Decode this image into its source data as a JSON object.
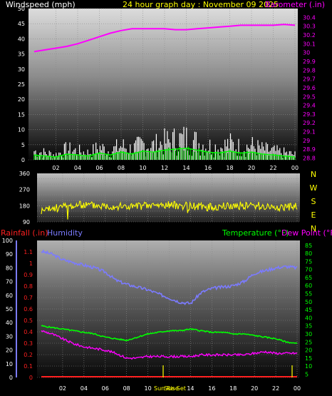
{
  "colors": {
    "wind": "#ffffff",
    "wind_avg": "#00b000",
    "wind_avg_line": "#00ff00",
    "barometer": "#ff00ff",
    "direction": "#ffff00",
    "rain": "#ff2020",
    "humidity": "#7b7bff",
    "temperature": "#00ff00",
    "dewpoint": "#ff00ff",
    "axis_left": "#ffffff",
    "grid": "#8a8a8a"
  },
  "header": {
    "wind_label": "Windspeed (mph)",
    "graph_title": "24 hour graph day : November 09 2025",
    "baro_label": "Barometer (.in)"
  },
  "lower_header": {
    "rain_label": "Rainfall (.in)",
    "humidity_label": "Humidity",
    "temp_label": "Temperature (°F)",
    "dew_label": "Dew Point (°F)"
  },
  "sun": {
    "rise_label": "Sun Rise",
    "set_label": "Sun Set"
  },
  "chart_data": [
    {
      "type": "area",
      "title": "24 hour graph day : November 09 2025",
      "x_ticks": [
        "02",
        "04",
        "06",
        "08",
        "10",
        "12",
        "14",
        "16",
        "18",
        "20",
        "22",
        "00"
      ],
      "ylabel": "Windspeed (mph)",
      "ylim": [
        0,
        50
      ],
      "y_ticks": [
        0,
        5,
        10,
        15,
        20,
        25,
        30,
        35,
        40,
        45,
        50
      ],
      "y2label": "Barometer (.in)",
      "y2lim": [
        28.78,
        30.5
      ],
      "y2_ticks": [
        "28.8",
        "28.9",
        "29",
        "29.1",
        "29.2",
        "29.3",
        "29.4",
        "29.5",
        "29.6",
        "29.7",
        "29.8",
        "29.9",
        "30",
        "30.1",
        "30.2",
        "30.3",
        "30.4"
      ],
      "series": [
        {
          "name": "Windspeed (mph)",
          "x": [
            0,
            1,
            2,
            3,
            4,
            5,
            6,
            7,
            8,
            9,
            10,
            11,
            12,
            13,
            14,
            15,
            16,
            17,
            18,
            19,
            20,
            21,
            22,
            23,
            24
          ],
          "values": [
            5,
            4,
            3,
            6,
            5,
            4,
            7,
            5,
            8,
            6,
            9,
            8,
            10,
            11,
            12,
            10,
            8,
            7,
            9,
            7,
            8,
            6,
            5,
            4,
            3
          ]
        },
        {
          "name": "Barometer (.in)",
          "x": [
            0,
            1,
            2,
            3,
            4,
            5,
            6,
            7,
            8,
            9,
            10,
            11,
            12,
            13,
            14,
            15,
            16,
            17,
            18,
            19,
            20,
            21,
            22,
            23,
            24
          ],
          "values": [
            30.01,
            30.03,
            30.05,
            30.07,
            30.1,
            30.14,
            30.18,
            30.22,
            30.25,
            30.27,
            30.27,
            30.27,
            30.27,
            30.26,
            30.26,
            30.27,
            30.28,
            30.29,
            30.3,
            30.31,
            30.31,
            30.31,
            30.31,
            30.32,
            30.31
          ]
        }
      ]
    },
    {
      "type": "line",
      "x_ticks": [],
      "y_ticks": [
        90,
        120,
        150,
        180,
        210,
        240,
        270,
        300,
        330,
        360
      ],
      "ylim": [
        90,
        360
      ],
      "direction_labels": [
        "N",
        "W",
        "S",
        "E",
        "N"
      ],
      "series": [
        {
          "name": "Wind direction",
          "x": [
            0,
            2,
            4,
            6,
            8,
            10,
            12,
            14,
            16,
            18,
            20,
            22,
            24
          ],
          "values": [
            150,
            175,
            185,
            180,
            175,
            180,
            185,
            178,
            172,
            180,
            182,
            170,
            175
          ]
        }
      ]
    },
    {
      "type": "line",
      "x_ticks": [
        "02",
        "04",
        "06",
        "08",
        "10",
        "12",
        "14",
        "16",
        "18",
        "20",
        "22",
        "00"
      ],
      "y_left_ticks": [
        0,
        10,
        20,
        30,
        40,
        50,
        60,
        70,
        80,
        90,
        100
      ],
      "ylim_left": [
        0,
        100
      ],
      "rain_ticks": [
        "0",
        "0.1",
        "0.2",
        "0.3",
        "0.4",
        "0.5",
        "0.6",
        "0.7",
        "0.8",
        "0.9",
        "1",
        "1.1"
      ],
      "rain_lim": [
        0,
        1.2
      ],
      "y_right_ticks": [
        5,
        10,
        15,
        20,
        25,
        30,
        35,
        40,
        45,
        50,
        55,
        60,
        65,
        70,
        75,
        80,
        85
      ],
      "ylim_right": [
        3,
        88
      ],
      "series": [
        {
          "name": "Humidity",
          "x": [
            0,
            1,
            2,
            3,
            4,
            5,
            6,
            7,
            8,
            9,
            10,
            11,
            12,
            13,
            14,
            15,
            16,
            17,
            18,
            19,
            20,
            21,
            22,
            23,
            24
          ],
          "values": [
            92,
            90,
            86,
            84,
            82,
            80,
            77,
            71,
            68,
            66,
            64,
            61,
            58,
            55,
            54,
            62,
            65,
            66,
            67,
            70,
            76,
            78,
            80,
            81,
            80
          ]
        },
        {
          "name": "Temperature (°F)",
          "x": [
            0,
            1,
            2,
            3,
            4,
            5,
            6,
            7,
            8,
            9,
            10,
            11,
            12,
            13,
            14,
            15,
            16,
            17,
            18,
            19,
            20,
            21,
            22,
            23,
            24
          ],
          "values": [
            35,
            34,
            33,
            32,
            31,
            30,
            28,
            27,
            26,
            28,
            30,
            31,
            32,
            32,
            33,
            32,
            31,
            31,
            30,
            30,
            29,
            28,
            27,
            25,
            24
          ]
        },
        {
          "name": "Dew Point (°F)",
          "x": [
            0,
            1,
            2,
            3,
            4,
            5,
            6,
            7,
            8,
            9,
            10,
            11,
            12,
            13,
            14,
            15,
            16,
            17,
            18,
            19,
            20,
            21,
            22,
            23,
            24
          ],
          "values": [
            32,
            30,
            27,
            24,
            22,
            21,
            20,
            18,
            15,
            15,
            16,
            16,
            16,
            16,
            16,
            17,
            17,
            17,
            17,
            17,
            18,
            19,
            18,
            18,
            18
          ]
        },
        {
          "name": "Rainfall (.in)",
          "x": [
            0,
            24
          ],
          "values": [
            0,
            0
          ]
        }
      ]
    }
  ]
}
